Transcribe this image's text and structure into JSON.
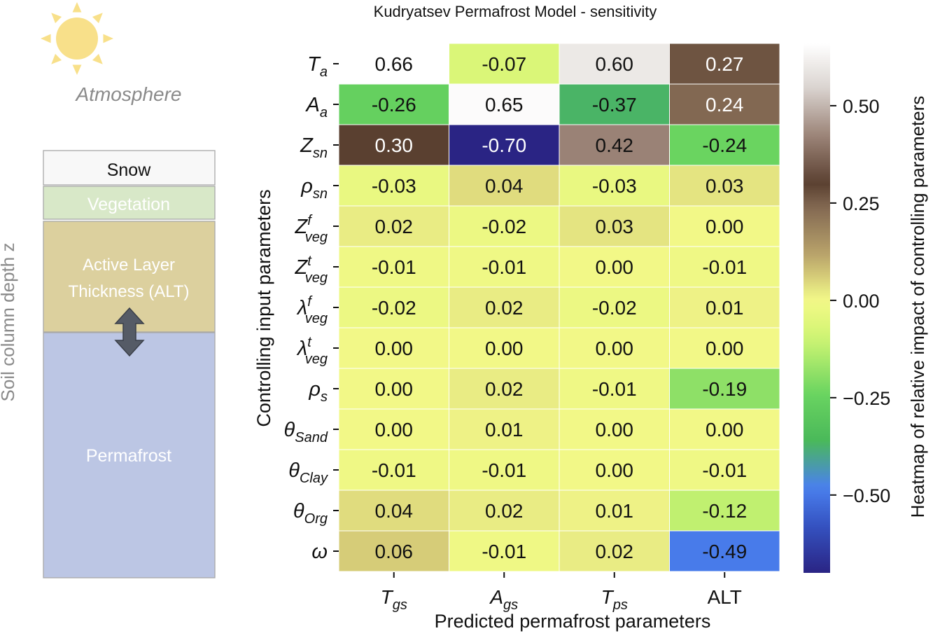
{
  "chart_data": {
    "type": "heatmap",
    "title": "Kudryatsev Permafrost Model - sensitivity",
    "xlabel": "Predicted permafrost parameters",
    "ylabel": "Controlling input parameters",
    "colorbar_label": "Heatmap of relative impact of controlling parameters",
    "colorbar_ticks": [
      "0.50",
      "0.25",
      "0.00",
      "−0.25",
      "−0.50"
    ],
    "colorbar_tick_values": [
      0.5,
      0.25,
      0.0,
      -0.25,
      -0.5
    ],
    "vmin": -0.7,
    "vmax": 0.66,
    "columns": [
      {
        "base": "T",
        "sub": "gs",
        "sup": ""
      },
      {
        "base": "A",
        "sub": "gs",
        "sup": ""
      },
      {
        "base": "T",
        "sub": "ps",
        "sup": ""
      },
      {
        "base": "ALT",
        "sub": "",
        "sup": "",
        "upright": true
      }
    ],
    "rows": [
      {
        "base": "T",
        "sub": "a",
        "sup": ""
      },
      {
        "base": "A",
        "sub": "a",
        "sup": ""
      },
      {
        "base": "Z",
        "sub": "sn",
        "sup": ""
      },
      {
        "base": "ρ",
        "sub": "sn",
        "sup": ""
      },
      {
        "base": "Z",
        "sub": "veg",
        "sup": "f"
      },
      {
        "base": "Z",
        "sub": "veg",
        "sup": "t"
      },
      {
        "base": "λ",
        "sub": "veg",
        "sup": "f"
      },
      {
        "base": "λ",
        "sub": "veg",
        "sup": "t"
      },
      {
        "base": "ρ",
        "sub": "s",
        "sup": ""
      },
      {
        "base": "θ",
        "sub": "Sand",
        "sup": ""
      },
      {
        "base": "θ",
        "sub": "Clay",
        "sup": ""
      },
      {
        "base": "θ",
        "sub": "Org",
        "sup": ""
      },
      {
        "base": "ω",
        "sub": "",
        "sup": ""
      }
    ],
    "values": [
      [
        "0.66",
        "-0.07",
        "0.60",
        "0.27"
      ],
      [
        "-0.26",
        "0.65",
        "-0.37",
        "0.24"
      ],
      [
        "0.30",
        "-0.70",
        "0.42",
        "-0.24"
      ],
      [
        "-0.03",
        "0.04",
        "-0.03",
        "0.03"
      ],
      [
        "0.02",
        "-0.02",
        "0.03",
        "0.00"
      ],
      [
        "-0.01",
        "-0.01",
        "0.00",
        "-0.01"
      ],
      [
        "-0.02",
        "0.02",
        "-0.02",
        "0.01"
      ],
      [
        "0.00",
        "0.00",
        "0.00",
        "0.00"
      ],
      [
        "0.00",
        "0.02",
        "-0.01",
        "-0.19"
      ],
      [
        "0.00",
        "0.01",
        "0.00",
        "0.00"
      ],
      [
        "-0.01",
        "-0.01",
        "0.00",
        "-0.01"
      ],
      [
        "0.04",
        "0.02",
        "0.01",
        "-0.12"
      ],
      [
        "0.06",
        "-0.01",
        "0.02",
        "-0.49"
      ]
    ],
    "colorscale": [
      {
        "v": -0.7,
        "c": "#2a2484"
      },
      {
        "v": -0.58,
        "c": "#3552c0"
      },
      {
        "v": -0.48,
        "c": "#4a80ef"
      },
      {
        "v": -0.36,
        "c": "#4ab95a"
      },
      {
        "v": -0.24,
        "c": "#6ad460"
      },
      {
        "v": -0.12,
        "c": "#c0f070"
      },
      {
        "v": -0.06,
        "c": "#dff77a"
      },
      {
        "v": 0.0,
        "c": "#f2f887"
      },
      {
        "v": 0.02,
        "c": "#e9ec84"
      },
      {
        "v": 0.06,
        "c": "#d6cc78"
      },
      {
        "v": 0.12,
        "c": "#b8a26a"
      },
      {
        "v": 0.24,
        "c": "#826852"
      },
      {
        "v": 0.3,
        "c": "#5a4030"
      },
      {
        "v": 0.42,
        "c": "#9a8276"
      },
      {
        "v": 0.55,
        "c": "#dcd6d2"
      },
      {
        "v": 0.66,
        "c": "#ffffff"
      }
    ]
  },
  "diagram": {
    "atmosphere_label": "Atmosphere",
    "layers": [
      "Snow",
      "Vegetation",
      "Active Layer Thickness (ALT)",
      "Permafrost"
    ],
    "depth_label": "Soil column depth z"
  },
  "colors": {
    "sun": "#f8e08a",
    "snow": "#f8f8f8",
    "vegetation": "#d8e8c8",
    "active_layer": "#dcd09e",
    "permafrost": "#bcc6e4",
    "arrow": "#555b66",
    "atmosphere_text": "#8a8a8a"
  }
}
